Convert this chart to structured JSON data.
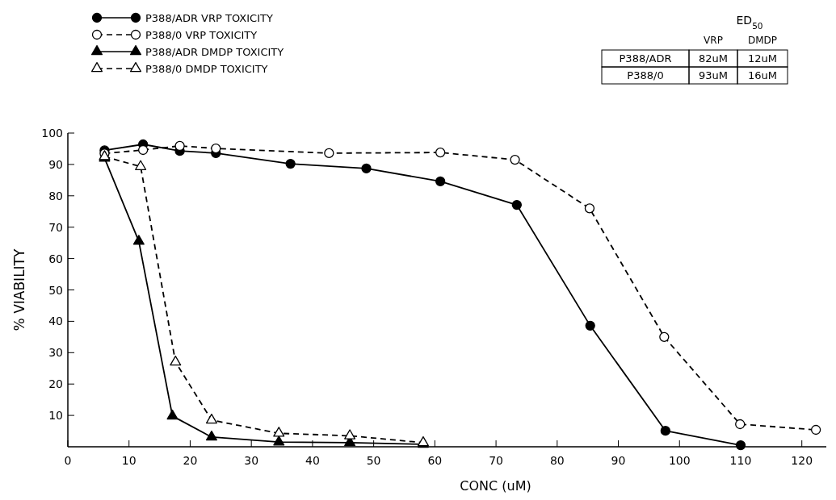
{
  "chart_data": {
    "type": "line",
    "xlabel": "CONC (uM)",
    "ylabel": "% VIABILITY",
    "xlim": [
      0,
      124
    ],
    "ylim": [
      0,
      100
    ],
    "xticks": [
      0,
      10,
      20,
      30,
      40,
      50,
      60,
      70,
      80,
      90,
      100,
      110,
      120
    ],
    "yticks": [
      10,
      20,
      30,
      40,
      50,
      60,
      70,
      80,
      90,
      100
    ],
    "grid": false,
    "legend": "top left",
    "series": [
      {
        "name": "P388/ADR VRP TOXICITY",
        "color": "#000000",
        "marker": "circle",
        "line_style": "solid",
        "x": [
          6,
          12.3,
          18.3,
          24.2,
          36.4,
          48.8,
          60.9,
          73.4,
          85.4,
          97.7,
          110
        ],
        "values": [
          94.5,
          96.4,
          94.3,
          93.6,
          90.2,
          88.7,
          84.6,
          77.1,
          38.6,
          5.1,
          0.5
        ]
      },
      {
        "name": "P388/0 VRP TOXICITY",
        "color": "#000000",
        "marker": "circle",
        "line_style": "dashed",
        "x": [
          6,
          12.3,
          18.3,
          24.2,
          42.7,
          60.9,
          73.1,
          85.3,
          97.5,
          109.9,
          122.3
        ],
        "values": [
          93.5,
          94.6,
          95.9,
          95.1,
          93.6,
          93.8,
          91.5,
          76,
          35,
          7.2,
          5.4
        ]
      },
      {
        "name": "P388/ADR DMDP TOXICITY",
        "color": "#000000",
        "marker": "triangle",
        "line_style": "solid",
        "x": [
          6,
          11.6,
          17.1,
          23.5,
          34.5,
          46.1,
          58.1
        ],
        "values": [
          92,
          65.5,
          9.8,
          3.1,
          1.5,
          1.3,
          0.8
        ]
      },
      {
        "name": "P388/0 DMDP TOXICITY",
        "color": "#000000",
        "marker": "triangle",
        "line_style": "dashed",
        "x": [
          6,
          11.9,
          17.6,
          23.5,
          34.5,
          46.1,
          58.1
        ],
        "values": [
          92.5,
          89.3,
          27,
          8.5,
          4.3,
          3.5,
          1.3
        ]
      }
    ],
    "annotations": [
      "ED$_{50}$",
      "VRP",
      "DMDP",
      "P388/ADR",
      "82uM",
      "12uM",
      "P388/0",
      "93uM",
      "16uM"
    ]
  }
}
